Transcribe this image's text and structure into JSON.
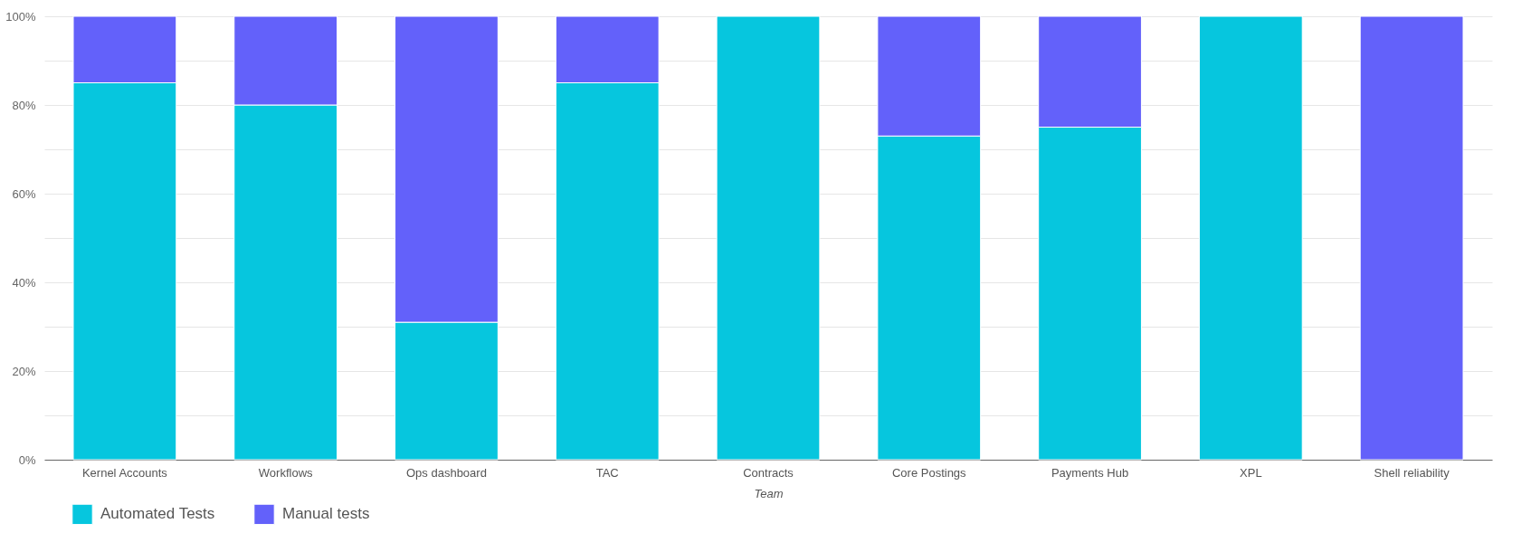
{
  "chart_data": {
    "type": "bar",
    "stacked": true,
    "xlabel": "Team",
    "categories": [
      "Kernel Accounts",
      "Workflows",
      "Ops dashboard",
      "TAC",
      "Contracts",
      "Core Postings",
      "Payments Hub",
      "XPL",
      "Shell reliability"
    ],
    "series": [
      {
        "name": "Automated Tests",
        "color": "#06c6de",
        "values": [
          85,
          80,
          31,
          85,
          100,
          73,
          75,
          100,
          0
        ]
      },
      {
        "name": "Manual tests",
        "color": "#6361fa",
        "values": [
          15,
          20,
          69,
          15,
          0,
          27,
          25,
          0,
          100
        ]
      }
    ],
    "ylim": [
      0,
      100
    ],
    "yticks": [
      {
        "value": 0,
        "label": "0%"
      },
      {
        "value": 10,
        "label": null
      },
      {
        "value": 20,
        "label": "20%"
      },
      {
        "value": 30,
        "label": null
      },
      {
        "value": 40,
        "label": "40%"
      },
      {
        "value": 50,
        "label": null
      },
      {
        "value": 60,
        "label": "60%"
      },
      {
        "value": 70,
        "label": null
      },
      {
        "value": 80,
        "label": "80%"
      },
      {
        "value": 90,
        "label": null
      },
      {
        "value": 100,
        "label": "100%"
      }
    ],
    "grid": true,
    "legend": "bottom left"
  }
}
